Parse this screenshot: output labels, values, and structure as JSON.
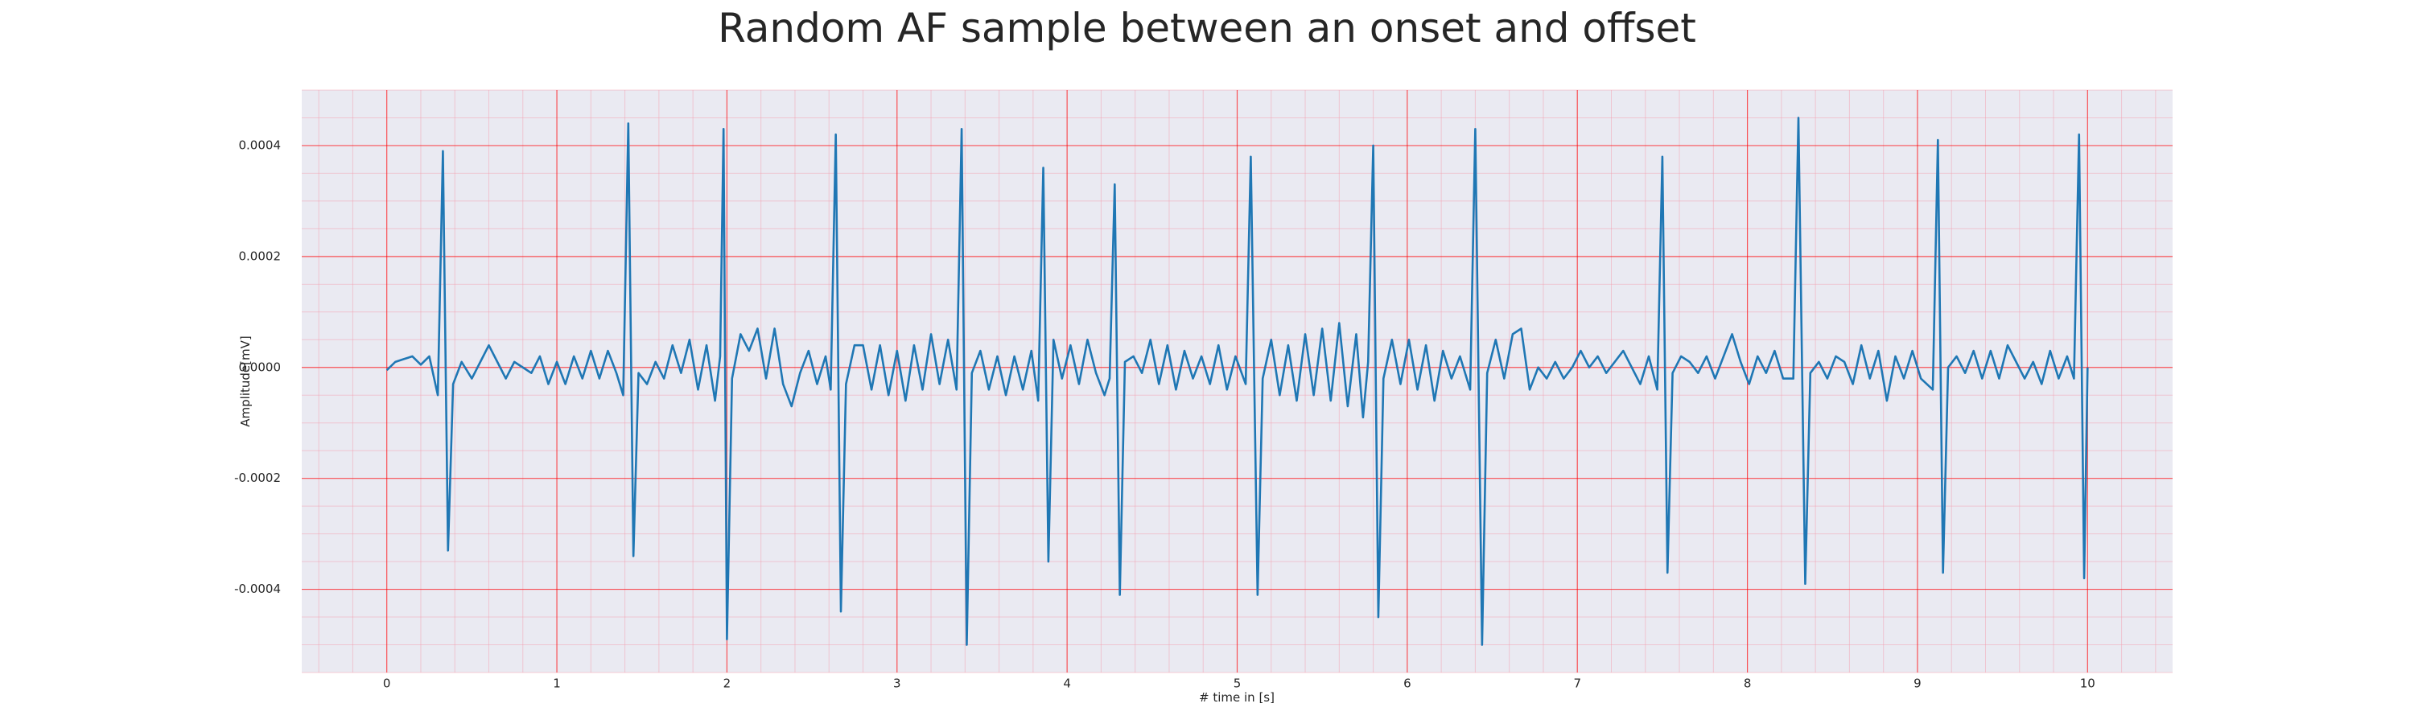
{
  "chart_data": {
    "type": "line",
    "title": "Random AF sample between an onset and offset",
    "xlabel": "# time in [s]",
    "ylabel": "Amplitude[mV]",
    "xlim": [
      -0.5,
      10.5
    ],
    "ylim": [
      -0.00055,
      0.0005
    ],
    "xticks": [
      0,
      1,
      2,
      3,
      4,
      5,
      6,
      7,
      8,
      9,
      10
    ],
    "yticks": [
      -0.0004,
      -0.0002,
      {
        "value": 0,
        "label": "0.0000"
      },
      0.0002,
      0.0004
    ],
    "grid": true,
    "grid_color": "#ff0000",
    "minor_grid": {
      "x": 0.2,
      "y": 5e-05,
      "color": "#f4a0b0"
    },
    "background": "#eaeaf2",
    "x": [
      0,
      0.05,
      0.1,
      0.15,
      0.2,
      0.25,
      0.3,
      0.33,
      0.36,
      0.39,
      0.44,
      0.5,
      0.55,
      0.6,
      0.65,
      0.7,
      0.75,
      0.8,
      0.85,
      0.9,
      0.95,
      1.0,
      1.05,
      1.1,
      1.15,
      1.2,
      1.25,
      1.3,
      1.35,
      1.39,
      1.42,
      1.45,
      1.48,
      1.53,
      1.58,
      1.63,
      1.68,
      1.73,
      1.78,
      1.83,
      1.88,
      1.93,
      1.96,
      1.98,
      2.0,
      2.03,
      2.08,
      2.13,
      2.18,
      2.23,
      2.28,
      2.33,
      2.38,
      2.43,
      2.48,
      2.53,
      2.58,
      2.61,
      2.64,
      2.67,
      2.7,
      2.75,
      2.8,
      2.85,
      2.9,
      2.95,
      3.0,
      3.05,
      3.1,
      3.15,
      3.2,
      3.25,
      3.3,
      3.35,
      3.38,
      3.41,
      3.44,
      3.49,
      3.54,
      3.59,
      3.64,
      3.69,
      3.74,
      3.79,
      3.83,
      3.86,
      3.89,
      3.92,
      3.97,
      4.02,
      4.07,
      4.12,
      4.17,
      4.22,
      4.25,
      4.28,
      4.31,
      4.34,
      4.39,
      4.44,
      4.49,
      4.54,
      4.59,
      4.64,
      4.69,
      4.74,
      4.79,
      4.84,
      4.89,
      4.94,
      4.99,
      5.05,
      5.08,
      5.12,
      5.15,
      5.2,
      5.25,
      5.3,
      5.35,
      5.4,
      5.45,
      5.5,
      5.55,
      5.6,
      5.65,
      5.7,
      5.74,
      5.77,
      5.8,
      5.83,
      5.86,
      5.91,
      5.96,
      6.01,
      6.06,
      6.11,
      6.16,
      6.21,
      6.26,
      6.31,
      6.37,
      6.4,
      6.44,
      6.47,
      6.52,
      6.57,
      6.62,
      6.67,
      6.72,
      6.77,
      6.82,
      6.87,
      6.92,
      6.97,
      7.02,
      7.07,
      7.12,
      7.17,
      7.22,
      7.27,
      7.32,
      7.37,
      7.42,
      7.47,
      7.5,
      7.53,
      7.56,
      7.61,
      7.66,
      7.71,
      7.76,
      7.81,
      7.86,
      7.91,
      7.96,
      8.01,
      8.06,
      8.11,
      8.16,
      8.21,
      8.27,
      8.3,
      8.34,
      8.37,
      8.42,
      8.47,
      8.52,
      8.57,
      8.62,
      8.67,
      8.72,
      8.77,
      8.82,
      8.87,
      8.92,
      8.97,
      9.02,
      9.09,
      9.12,
      9.15,
      9.18,
      9.23,
      9.28,
      9.33,
      9.38,
      9.43,
      9.48,
      9.53,
      9.58,
      9.63,
      9.68,
      9.73,
      9.78,
      9.83,
      9.88,
      9.92,
      9.95,
      9.98,
      10.0
    ],
    "series": [
      {
        "color": "#1f77b4",
        "values": [
          -5e-06,
          1e-05,
          1.5e-05,
          2e-05,
          5e-06,
          2e-05,
          -5e-05,
          0.00039,
          -0.00033,
          -3e-05,
          1e-05,
          -2e-05,
          1e-05,
          4e-05,
          1e-05,
          -2e-05,
          1e-05,
          0,
          -1e-05,
          2e-05,
          -3e-05,
          1e-05,
          -3e-05,
          2e-05,
          -2e-05,
          3e-05,
          -2e-05,
          3e-05,
          -1e-05,
          -5e-05,
          0.00044,
          -0.00034,
          -1e-05,
          -3e-05,
          1e-05,
          -2e-05,
          4e-05,
          -1e-05,
          5e-05,
          -4e-05,
          4e-05,
          -6e-05,
          2e-05,
          0.00043,
          -0.00049,
          -2e-05,
          6e-05,
          3e-05,
          7e-05,
          -2e-05,
          7e-05,
          -3e-05,
          -7e-05,
          -1e-05,
          3e-05,
          -3e-05,
          2e-05,
          -4e-05,
          0.00042,
          -0.00044,
          -3e-05,
          4e-05,
          4e-05,
          -4e-05,
          4e-05,
          -5e-05,
          3e-05,
          -6e-05,
          4e-05,
          -4e-05,
          6e-05,
          -3e-05,
          5e-05,
          -4e-05,
          0.00043,
          -0.0005,
          -1e-05,
          3e-05,
          -4e-05,
          2e-05,
          -5e-05,
          2e-05,
          -4e-05,
          3e-05,
          -6e-05,
          0.00036,
          -0.00035,
          5e-05,
          -2e-05,
          4e-05,
          -3e-05,
          5e-05,
          -1e-05,
          -5e-05,
          -2e-05,
          0.00033,
          -0.00041,
          1e-05,
          2e-05,
          -1e-05,
          5e-05,
          -3e-05,
          4e-05,
          -4e-05,
          3e-05,
          -2e-05,
          2e-05,
          -3e-05,
          4e-05,
          -4e-05,
          2e-05,
          -3e-05,
          0.00038,
          -0.00041,
          -2e-05,
          5e-05,
          -5e-05,
          4e-05,
          -6e-05,
          6e-05,
          -5e-05,
          7e-05,
          -6e-05,
          8e-05,
          -7e-05,
          6e-05,
          -9e-05,
          1e-05,
          0.0004,
          -0.00045,
          -2e-05,
          5e-05,
          -3e-05,
          5e-05,
          -4e-05,
          4e-05,
          -6e-05,
          3e-05,
          -2e-05,
          2e-05,
          -4e-05,
          0.00043,
          -0.0005,
          -1e-05,
          5e-05,
          -2e-05,
          6e-05,
          7e-05,
          -4e-05,
          0,
          -2e-05,
          1e-05,
          -2e-05,
          0,
          3e-05,
          0,
          2e-05,
          -1e-05,
          1e-05,
          3e-05,
          0,
          -3e-05,
          2e-05,
          -4e-05,
          0.00038,
          -0.00037,
          -1e-05,
          2e-05,
          1e-05,
          -1e-05,
          2e-05,
          -2e-05,
          2e-05,
          6e-05,
          1e-05,
          -3e-05,
          2e-05,
          -1e-05,
          3e-05,
          -2e-05,
          -2e-05,
          0.00045,
          -0.00039,
          -1e-05,
          1e-05,
          -2e-05,
          2e-05,
          1e-05,
          -3e-05,
          4e-05,
          -2e-05,
          3e-05,
          -6e-05,
          2e-05,
          -2e-05,
          3e-05,
          -2e-05,
          -4e-05,
          0.00041,
          -0.00037,
          0,
          2e-05,
          -1e-05,
          3e-05,
          -2e-05,
          3e-05,
          -2e-05,
          4e-05,
          1e-05,
          -2e-05,
          1e-05,
          -3e-05,
          3e-05,
          -2e-05,
          2e-05,
          -2e-05,
          0.00042,
          -0.00038,
          0
        ]
      }
    ]
  }
}
